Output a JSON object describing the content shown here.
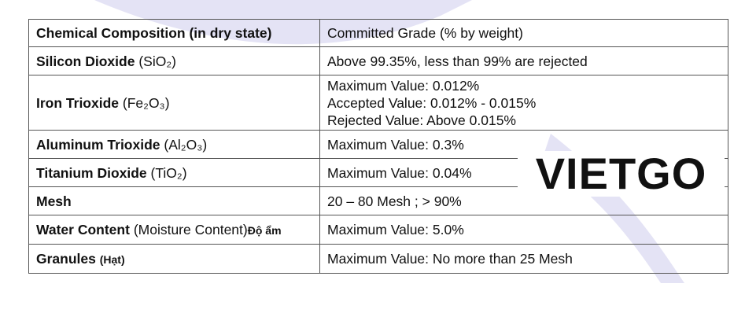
{
  "table": {
    "header": [
      "Chemical Composition (in dry state)",
      "Committed Grade (% by weight)"
    ],
    "rows": [
      {
        "name": "Silicon Dioxide",
        "detail": "(SiO₂)",
        "grade": [
          "Above 99.35%, less than 99% are rejected"
        ]
      },
      {
        "name": "Iron Trioxide",
        "detail": "(Fe₂O₃)",
        "grade": [
          "Maximum Value: 0.012%",
          "Accepted Value: 0.012% - 0.015%",
          "Rejected Value: Above 0.015%"
        ]
      },
      {
        "name": "Aluminum Trioxide",
        "detail": "(Al₂O₃)",
        "grade": [
          "Maximum Value: 0.3%"
        ]
      },
      {
        "name": "Titanium Dioxide",
        "detail": "(TiO₂)",
        "grade": [
          "Maximum Value: 0.04%"
        ]
      },
      {
        "name": "Mesh",
        "grade": [
          "20 – 80 Mesh ; > 90%"
        ]
      },
      {
        "name": "Water Content",
        "detail": "(Moisture Content)",
        "note": "Độ ẩm",
        "grade": [
          "Maximum Value: 5.0%"
        ]
      },
      {
        "name": "Granules",
        "note": "(Hạt)",
        "grade": [
          "Maximum Value: No more than 25 Mesh"
        ]
      }
    ]
  },
  "watermark": "VIETGO"
}
